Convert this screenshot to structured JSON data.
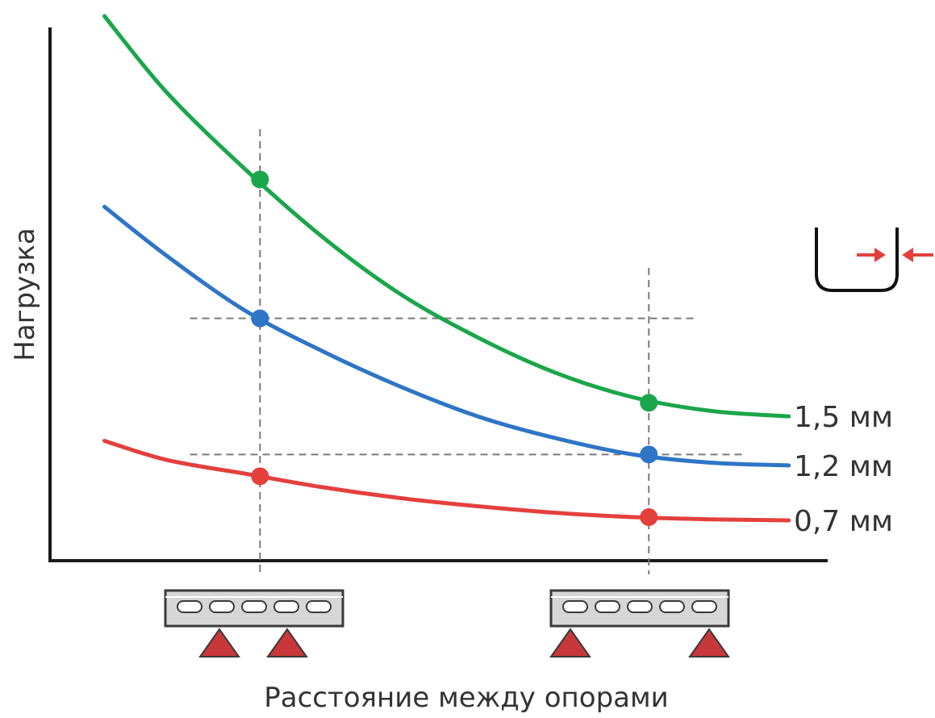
{
  "chart_data": {
    "type": "line",
    "title": "",
    "xlabel": "Расстояние между опорами",
    "ylabel": "Нагрузка",
    "x_ticks_labeled": false,
    "y_ticks_labeled": false,
    "xlim": [
      0,
      10
    ],
    "ylim": [
      0,
      10
    ],
    "grid": false,
    "series": [
      {
        "name": "1,5 мм",
        "color": "#1aa64a",
        "x": [
          0.7,
          1.5,
          2.5,
          3.5,
          4.5,
          5.5,
          6.5,
          7.5,
          8.5,
          9.5
        ],
        "y": [
          10.0,
          8.6,
          7.2,
          5.95,
          4.9,
          4.1,
          3.45,
          3.0,
          2.75,
          2.65
        ],
        "markers": [
          {
            "x": 2.7,
            "y": 7.0
          },
          {
            "x": 7.7,
            "y": 2.9
          }
        ]
      },
      {
        "name": "1,2 мм",
        "color": "#2e75c6",
        "x": [
          0.7,
          1.5,
          2.5,
          3.5,
          4.5,
          5.5,
          6.5,
          7.5,
          8.5,
          9.5
        ],
        "y": [
          6.5,
          5.6,
          4.6,
          3.85,
          3.2,
          2.65,
          2.25,
          1.95,
          1.8,
          1.75
        ],
        "markers": [
          {
            "x": 2.7,
            "y": 4.45
          },
          {
            "x": 7.7,
            "y": 1.95
          }
        ]
      },
      {
        "name": "0,7 мм",
        "color": "#e3403c",
        "x": [
          0.7,
          1.5,
          2.5,
          3.5,
          4.5,
          5.5,
          6.5,
          7.5,
          8.5,
          9.5
        ],
        "y": [
          2.2,
          1.85,
          1.6,
          1.35,
          1.15,
          1.0,
          0.88,
          0.8,
          0.76,
          0.74
        ],
        "markers": [
          {
            "x": 2.7,
            "y": 1.55
          },
          {
            "x": 7.7,
            "y": 0.8
          }
        ]
      }
    ],
    "guides": {
      "vertical_x": [
        2.7,
        7.7
      ],
      "horizontal": [
        {
          "y": 4.45,
          "x_from": 1.8,
          "x_to": 8.3
        },
        {
          "y": 1.95,
          "x_from": 1.8,
          "x_to": 8.9
        }
      ]
    },
    "icons": {
      "profile_thickness_icon": "u-profile-with-thickness-arrows",
      "support_short_span": "perforated-beam-on-two-close-supports",
      "support_long_span": "perforated-beam-on-two-far-supports"
    },
    "colors": {
      "axis": "#1a1a1a",
      "guide": "#7a7a7a",
      "beam_fill": "#d6d6d6",
      "beam_stroke": "#3a3a3a",
      "support": "#c8383a",
      "arrow": "#e3403c"
    }
  }
}
